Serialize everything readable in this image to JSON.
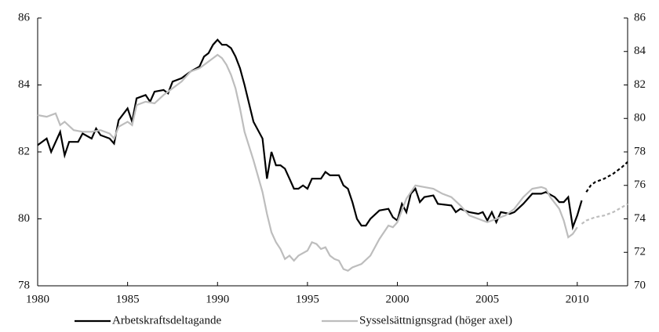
{
  "chart_data": {
    "type": "line",
    "xlim": [
      1980,
      2012.8
    ],
    "xticks": [
      1980,
      1985,
      1990,
      1995,
      2000,
      2005,
      2010
    ],
    "ylim": [
      78,
      86
    ],
    "yticks": [
      78,
      80,
      82,
      84,
      86
    ],
    "y2lim": [
      70,
      86
    ],
    "y2ticks": [
      70,
      72,
      74,
      76,
      78,
      80,
      82,
      84,
      86
    ],
    "legend": "bottom",
    "series": [
      {
        "name": "Arbetskraftsdeltagande",
        "color": "#000000",
        "axis": "y",
        "dash_from": 2010.4,
        "x": [
          1980,
          1980.5,
          1980.75,
          1981.25,
          1981.5,
          1981.75,
          1982.25,
          1982.5,
          1983,
          1983.25,
          1983.5,
          1984,
          1984.25,
          1984.5,
          1985,
          1985.25,
          1985.5,
          1986,
          1986.25,
          1986.5,
          1987,
          1987.25,
          1987.5,
          1988,
          1988.5,
          1989,
          1989.25,
          1989.5,
          1989.75,
          1990,
          1990.25,
          1990.5,
          1990.75,
          1991,
          1991.25,
          1991.5,
          1992,
          1992.5,
          1992.75,
          1993,
          1993.25,
          1993.5,
          1993.75,
          1994,
          1994.25,
          1994.5,
          1994.75,
          1995,
          1995.25,
          1995.75,
          1996,
          1996.25,
          1996.75,
          1997,
          1997.25,
          1997.5,
          1997.75,
          1998,
          1998.25,
          1998.5,
          1999,
          1999.5,
          1999.75,
          2000,
          2000.25,
          2000.5,
          2000.75,
          2001,
          2001.25,
          2001.5,
          2002,
          2002.25,
          2003,
          2003.25,
          2003.5,
          2004,
          2004.5,
          2004.75,
          2005,
          2005.25,
          2005.5,
          2005.75,
          2006.25,
          2006.5,
          2007,
          2007.5,
          2008,
          2008.25,
          2008.75,
          2009,
          2009.25,
          2009.5,
          2009.75,
          2010,
          2010.25,
          2010.5,
          2010.75,
          2011,
          2011.5,
          2012,
          2012.5,
          2012.8
        ],
        "values": [
          82.2,
          82.4,
          82.0,
          82.6,
          81.9,
          82.3,
          82.3,
          82.55,
          82.4,
          82.7,
          82.5,
          82.4,
          82.25,
          82.95,
          83.3,
          82.9,
          83.6,
          83.7,
          83.5,
          83.8,
          83.85,
          83.75,
          84.1,
          84.2,
          84.4,
          84.55,
          84.85,
          84.95,
          85.2,
          85.35,
          85.2,
          85.2,
          85.1,
          84.85,
          84.5,
          84.0,
          82.9,
          82.4,
          81.2,
          82.0,
          81.6,
          81.6,
          81.5,
          81.2,
          80.9,
          80.9,
          81.0,
          80.9,
          81.2,
          81.2,
          81.4,
          81.3,
          81.3,
          81.0,
          80.9,
          80.5,
          80.0,
          79.8,
          79.8,
          80.0,
          80.25,
          80.3,
          80.05,
          79.95,
          80.45,
          80.2,
          80.75,
          80.9,
          80.5,
          80.65,
          80.7,
          80.45,
          80.4,
          80.2,
          80.3,
          80.2,
          80.15,
          80.2,
          79.95,
          80.2,
          79.9,
          80.2,
          80.15,
          80.2,
          80.45,
          80.75,
          80.75,
          80.8,
          80.65,
          80.5,
          80.5,
          80.65,
          79.75,
          80.1,
          80.55,
          80.8,
          81.0,
          81.1,
          81.2,
          81.35,
          81.55,
          81.7
        ]
      },
      {
        "name": "Sysselsättnignsgrad (höger axel)",
        "color": "#bdbdbd",
        "axis": "y2",
        "dash_from": 2010.1,
        "x": [
          1980,
          1980.5,
          1981,
          1981.25,
          1981.5,
          1982,
          1982.5,
          1983,
          1983.5,
          1984,
          1984.25,
          1984.5,
          1985,
          1985.25,
          1985.5,
          1986,
          1986.5,
          1987,
          1987.5,
          1988,
          1988.5,
          1989,
          1989.5,
          1990,
          1990.25,
          1990.5,
          1990.75,
          1991,
          1991.25,
          1991.5,
          1992,
          1992.5,
          1992.75,
          1993,
          1993.25,
          1993.5,
          1993.75,
          1994,
          1994.25,
          1994.5,
          1995,
          1995.25,
          1995.5,
          1995.75,
          1996,
          1996.25,
          1996.5,
          1996.75,
          1997,
          1997.25,
          1997.5,
          1998,
          1998.5,
          1999,
          1999.5,
          1999.75,
          2000,
          2000.5,
          2001,
          2001.5,
          2002,
          2002.5,
          2003,
          2003.5,
          2004,
          2004.5,
          2005,
          2005.5,
          2006,
          2006.5,
          2007,
          2007.5,
          2008,
          2008.25,
          2008.5,
          2009,
          2009.25,
          2009.5,
          2009.75,
          2010,
          2010.25,
          2010.5,
          2011,
          2011.5,
          2012,
          2012.5,
          2012.8
        ],
        "values": [
          80.2,
          80.1,
          80.3,
          79.6,
          79.8,
          79.3,
          79.2,
          79.2,
          79.3,
          79.1,
          78.8,
          79.5,
          79.8,
          79.6,
          80.8,
          81.0,
          80.9,
          81.4,
          81.8,
          82.2,
          82.8,
          83.0,
          83.4,
          83.8,
          83.6,
          83.2,
          82.6,
          81.8,
          80.6,
          79.2,
          77.5,
          75.6,
          74.3,
          73.2,
          72.6,
          72.2,
          71.6,
          71.8,
          71.5,
          71.8,
          72.1,
          72.6,
          72.5,
          72.2,
          72.3,
          71.8,
          71.6,
          71.5,
          71.0,
          70.9,
          71.1,
          71.3,
          71.8,
          72.8,
          73.6,
          73.5,
          73.8,
          75.2,
          76.0,
          75.9,
          75.8,
          75.5,
          75.3,
          74.8,
          74.2,
          74.0,
          73.8,
          74.0,
          74.2,
          74.6,
          75.3,
          75.8,
          75.9,
          75.8,
          75.3,
          74.6,
          73.9,
          72.9,
          73.1,
          73.5,
          73.7,
          73.9,
          74.1,
          74.2,
          74.4,
          74.7,
          74.9
        ]
      }
    ]
  }
}
